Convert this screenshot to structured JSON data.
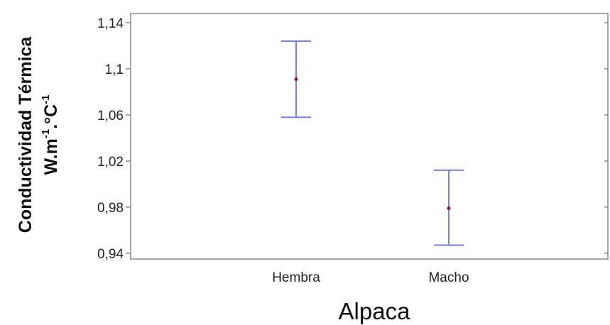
{
  "chart_data": {
    "type": "errorbar",
    "categories": [
      "Hembra",
      "Macho"
    ],
    "series": [
      {
        "means": [
          1.091,
          0.979
        ],
        "lower": [
          1.058,
          0.947
        ],
        "upper": [
          1.124,
          1.012
        ]
      }
    ],
    "xlabel": "Alpaca",
    "ylabel_line1": "Conductividad Térmica",
    "ylabel_line2_base": "W.m",
    "ylabel_line2_sup1": "-1",
    "ylabel_line2_mid": ".°C",
    "ylabel_line2_sup2": "-1",
    "yticks": [
      0.94,
      0.98,
      1.02,
      1.06,
      1.1,
      1.14
    ],
    "ytick_labels": [
      "0,94",
      "0,98",
      "1,02",
      "1,06",
      "1,1",
      "1,14"
    ],
    "ylim": [
      0.935,
      1.148
    ],
    "grid": false,
    "colors": {
      "errorbar": "#7b7bf0",
      "mean_point": "#8b1a3a",
      "axis": "#888888"
    }
  }
}
